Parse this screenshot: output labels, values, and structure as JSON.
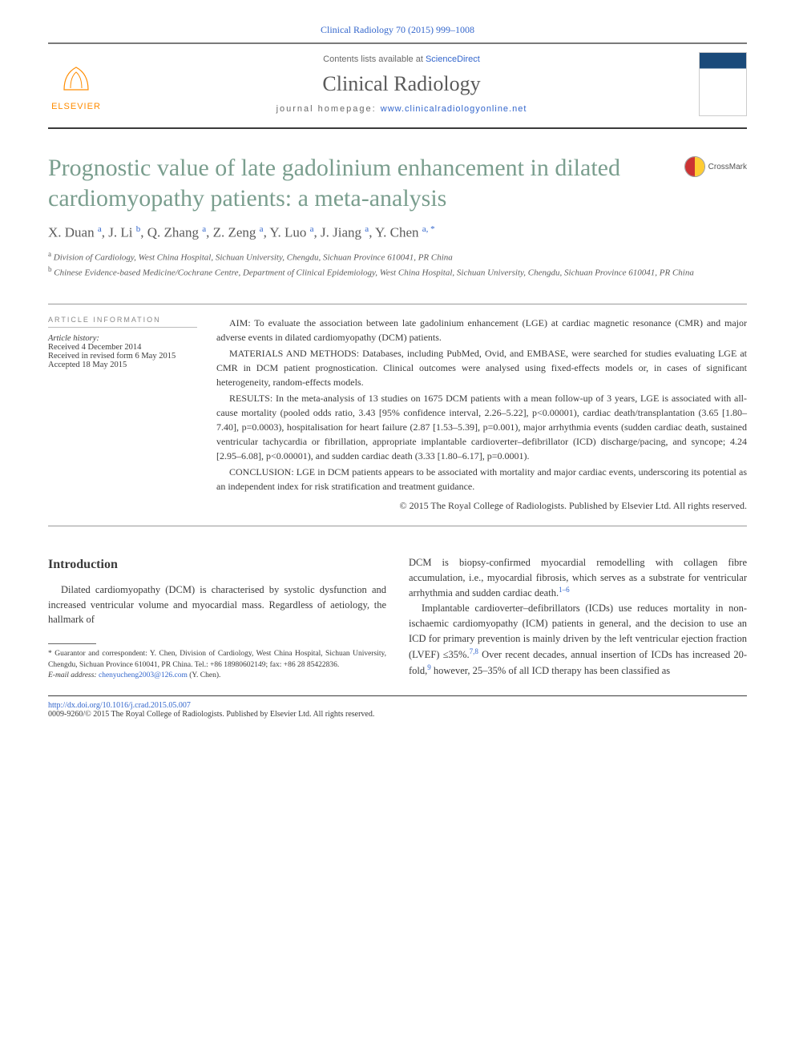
{
  "header": {
    "citation": "Clinical Radiology 70 (2015) 999–1008",
    "contents_prefix": "Contents lists available at ",
    "contents_link": "ScienceDirect",
    "journal_name": "Clinical Radiology",
    "homepage_prefix": "journal homepage: ",
    "homepage_link": "www.clinicalradiologyonline.net",
    "elsevier": "ELSEVIER",
    "crossmark": "CrossMark"
  },
  "article": {
    "title": "Prognostic value of late gadolinium enhancement in dilated cardiomyopathy patients: a meta-analysis",
    "authors_html": "X. Duan <sup>a</sup>, J. Li <sup>b</sup>, Q. Zhang <sup>a</sup>, Z. Zeng <sup>a</sup>, Y. Luo <sup>a</sup>, J. Jiang <sup>a</sup>, Y. Chen <sup>a, *</sup>",
    "affil_a": "Division of Cardiology, West China Hospital, Sichuan University, Chengdu, Sichuan Province 610041, PR China",
    "affil_b": "Chinese Evidence-based Medicine/Cochrane Centre, Department of Clinical Epidemiology, West China Hospital, Sichuan University, Chengdu, Sichuan Province 610041, PR China"
  },
  "meta": {
    "heading": "ARTICLE INFORMATION",
    "history_label": "Article history:",
    "received": "Received 4 December 2014",
    "revised": "Received in revised form 6 May 2015",
    "accepted": "Accepted 18 May 2015"
  },
  "abstract": {
    "aim": "AIM: To evaluate the association between late gadolinium enhancement (LGE) at cardiac magnetic resonance (CMR) and major adverse events in dilated cardiomyopathy (DCM) patients.",
    "methods": "MATERIALS AND METHODS: Databases, including PubMed, Ovid, and EMBASE, were searched for studies evaluating LGE at CMR in DCM patient prognostication. Clinical outcomes were analysed using fixed-effects models or, in cases of significant heterogeneity, random-effects models.",
    "results": "RESULTS: In the meta-analysis of 13 studies on 1675 DCM patients with a mean follow-up of 3 years, LGE is associated with all-cause mortality (pooled odds ratio, 3.43 [95% confidence interval, 2.26–5.22], p<0.00001), cardiac death/transplantation (3.65 [1.80–7.40], p=0.0003), hospitalisation for heart failure (2.87 [1.53–5.39], p=0.001), major arrhythmia events (sudden cardiac death, sustained ventricular tachycardia or fibrillation, appropriate implantable cardioverter–defibrillator (ICD) discharge/pacing, and syncope; 4.24 [2.95–6.08], p<0.00001), and sudden cardiac death (3.33 [1.80–6.17], p=0.0001).",
    "conclusion": "CONCLUSION: LGE in DCM patients appears to be associated with mortality and major cardiac events, underscoring its potential as an independent index for risk stratification and treatment guidance.",
    "copyright": "© 2015 The Royal College of Radiologists. Published by Elsevier Ltd. All rights reserved."
  },
  "intro": {
    "heading": "Introduction",
    "p1": "Dilated cardiomyopathy (DCM) is characterised by systolic dysfunction and increased ventricular volume and myocardial mass. Regardless of aetiology, the hallmark of",
    "p2_pre": "DCM is biopsy-confirmed myocardial remodelling with collagen fibre accumulation, i.e., myocardial fibrosis, which serves as a substrate for ventricular arrhythmia and sudden cardiac death.",
    "p2_ref": "1–6",
    "p3_a": "Implantable cardioverter–defibrillators (ICDs) use reduces mortality in non-ischaemic cardiomyopathy (ICM) patients in general, and the decision to use an ICD for primary prevention is mainly driven by the left ventricular ejection fraction (LVEF) ≤35%.",
    "p3_ref1": "7,8",
    "p3_b": " Over recent decades, annual insertion of ICDs has increased 20-fold,",
    "p3_ref2": "9",
    "p3_c": " however, 25–35% of all ICD therapy has been classified as"
  },
  "footnotes": {
    "guarantor": "* Guarantor and correspondent: Y. Chen, Division of Cardiology, West China Hospital, Sichuan University, Chengdu, Sichuan Province 610041, PR China. Tel.: +86 18980602149; fax: +86 28 85422836.",
    "email_label": "E-mail address: ",
    "email": "chenyucheng2003@126.com",
    "email_suffix": " (Y. Chen)."
  },
  "bottom": {
    "doi": "http://dx.doi.org/10.1016/j.crad.2015.05.007",
    "issn_line": "0009-9260/© 2015 The Royal College of Radiologists. Published by Elsevier Ltd. All rights reserved."
  },
  "colors": {
    "title_color": "#7a9e8e",
    "link_color": "#3366cc"
  }
}
